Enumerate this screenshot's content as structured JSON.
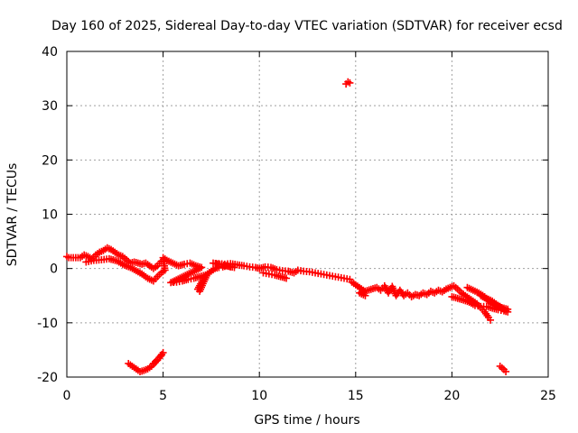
{
  "chart_data": {
    "type": "scatter",
    "title": "Day 160 of 2025, Sidereal Day-to-day VTEC variation (SDTVAR) for receiver ecsd",
    "xlabel": "GPS time / hours",
    "ylabel": "SDTVAR / TECUs",
    "xlim": [
      0,
      25
    ],
    "ylim": [
      -20,
      40
    ],
    "xticks": [
      "0",
      "5",
      "10",
      "15",
      "20",
      "25"
    ],
    "yticks": [
      "-20",
      "-10",
      "0",
      "10",
      "20",
      "30",
      "40"
    ],
    "grid": true,
    "marker": "+",
    "series": [
      {
        "name": "SDTVAR",
        "color": "#ff0000",
        "points": [
          [
            0.0,
            2.2
          ],
          [
            0.1,
            2.0
          ],
          [
            0.7,
            2.0
          ],
          [
            0.9,
            2.5
          ],
          [
            1.1,
            2.2
          ],
          [
            1.3,
            1.8
          ],
          [
            1.5,
            2.5
          ],
          [
            1.7,
            3.0
          ],
          [
            1.9,
            3.3
          ],
          [
            2.1,
            3.8
          ],
          [
            2.3,
            3.5
          ],
          [
            2.5,
            3.0
          ],
          [
            2.7,
            2.5
          ],
          [
            2.9,
            2.2
          ],
          [
            3.1,
            1.6
          ],
          [
            3.3,
            1.0
          ],
          [
            3.5,
            1.2
          ],
          [
            3.7,
            1.0
          ],
          [
            3.9,
            0.8
          ],
          [
            4.1,
            1.0
          ],
          [
            4.3,
            0.5
          ],
          [
            4.5,
            0.0
          ],
          [
            4.7,
            0.5
          ],
          [
            4.9,
            1.3
          ],
          [
            1.0,
            1.2
          ],
          [
            1.4,
            1.5
          ],
          [
            1.8,
            1.6
          ],
          [
            2.2,
            1.8
          ],
          [
            2.6,
            1.4
          ],
          [
            3.0,
            0.6
          ],
          [
            3.3,
            0.2
          ],
          [
            3.6,
            -0.4
          ],
          [
            3.9,
            -1.0
          ],
          [
            4.2,
            -1.8
          ],
          [
            4.5,
            -2.3
          ],
          [
            4.7,
            -1.5
          ],
          [
            4.9,
            -0.8
          ],
          [
            5.1,
            -0.3
          ],
          [
            5.0,
            2.0
          ],
          [
            5.2,
            1.5
          ],
          [
            5.5,
            1.0
          ],
          [
            5.8,
            0.5
          ],
          [
            6.1,
            0.8
          ],
          [
            6.4,
            1.0
          ],
          [
            6.7,
            0.5
          ],
          [
            7.0,
            0.2
          ],
          [
            5.4,
            -2.6
          ],
          [
            5.7,
            -2.5
          ],
          [
            6.0,
            -2.3
          ],
          [
            6.3,
            -2.0
          ],
          [
            6.6,
            -1.8
          ],
          [
            6.9,
            -1.5
          ],
          [
            7.2,
            -1.2
          ],
          [
            6.8,
            -3.8
          ],
          [
            6.9,
            -4.2
          ],
          [
            7.3,
            -1.0
          ],
          [
            7.5,
            -0.5
          ],
          [
            7.7,
            0.0
          ],
          [
            7.9,
            0.2
          ],
          [
            8.1,
            0.3
          ],
          [
            8.3,
            0.5
          ],
          [
            8.5,
            0.3
          ],
          [
            8.7,
            0.2
          ],
          [
            7.6,
            1.0
          ],
          [
            7.9,
            0.9
          ],
          [
            8.2,
            0.8
          ],
          [
            8.5,
            0.9
          ],
          [
            9.2,
            0.5
          ],
          [
            9.5,
            0.3
          ],
          [
            9.8,
            0.2
          ],
          [
            10.0,
            0.0
          ],
          [
            10.3,
            0.3
          ],
          [
            10.6,
            0.2
          ],
          [
            10.9,
            -0.2
          ],
          [
            11.2,
            -0.4
          ],
          [
            11.5,
            -0.5
          ],
          [
            11.8,
            -0.8
          ],
          [
            12.0,
            -0.3
          ],
          [
            12.3,
            -0.5
          ],
          [
            12.6,
            -0.6
          ],
          [
            12.9,
            -0.8
          ],
          [
            13.2,
            -1.0
          ],
          [
            13.5,
            -1.2
          ],
          [
            13.8,
            -1.4
          ],
          [
            14.1,
            -1.6
          ],
          [
            14.4,
            -1.8
          ],
          [
            14.7,
            -2.0
          ],
          [
            10.2,
            -0.8
          ],
          [
            10.5,
            -1.0
          ],
          [
            10.8,
            -1.2
          ],
          [
            11.1,
            -1.5
          ],
          [
            11.4,
            -1.8
          ],
          [
            14.5,
            34.0
          ],
          [
            14.6,
            34.4
          ],
          [
            14.7,
            34.2
          ],
          [
            14.8,
            -2.5
          ],
          [
            15.0,
            -3.0
          ],
          [
            15.2,
            -3.5
          ],
          [
            15.4,
            -4.0
          ],
          [
            15.5,
            -5.0
          ],
          [
            15.2,
            -4.5
          ],
          [
            16.1,
            -3.5
          ],
          [
            16.3,
            -4.0
          ],
          [
            16.5,
            -3.2
          ],
          [
            16.7,
            -4.5
          ],
          [
            16.9,
            -3.3
          ],
          [
            17.1,
            -5.0
          ],
          [
            17.3,
            -4.0
          ],
          [
            17.5,
            -5.0
          ],
          [
            17.7,
            -4.5
          ],
          [
            17.9,
            -5.2
          ],
          [
            18.1,
            -4.8
          ],
          [
            18.3,
            -5.0
          ],
          [
            18.5,
            -4.5
          ],
          [
            18.7,
            -4.8
          ],
          [
            18.9,
            -4.2
          ],
          [
            19.1,
            -4.5
          ],
          [
            19.3,
            -4.0
          ],
          [
            19.5,
            -4.3
          ],
          [
            19.7,
            -3.8
          ],
          [
            19.9,
            -3.5
          ],
          [
            20.1,
            -3.2
          ],
          [
            20.3,
            -3.8
          ],
          [
            20.5,
            -4.5
          ],
          [
            20.7,
            -5.0
          ],
          [
            20.9,
            -5.5
          ],
          [
            21.1,
            -6.0
          ],
          [
            21.3,
            -6.5
          ],
          [
            21.5,
            -7.2
          ],
          [
            21.7,
            -8.0
          ],
          [
            21.9,
            -9.0
          ],
          [
            22.0,
            -9.5
          ],
          [
            20.0,
            -5.2
          ],
          [
            20.3,
            -5.5
          ],
          [
            20.6,
            -5.8
          ],
          [
            20.9,
            -6.2
          ],
          [
            21.2,
            -6.8
          ],
          [
            21.5,
            -7.0
          ],
          [
            21.8,
            -7.0
          ],
          [
            22.1,
            -7.3
          ],
          [
            22.4,
            -7.6
          ],
          [
            22.7,
            -7.8
          ],
          [
            22.9,
            -8.0
          ],
          [
            21.5,
            -5.0
          ],
          [
            21.8,
            -5.5
          ],
          [
            22.1,
            -6.0
          ],
          [
            22.4,
            -6.8
          ],
          [
            22.6,
            -7.2
          ],
          [
            22.9,
            -7.5
          ],
          [
            20.8,
            -3.5
          ],
          [
            21.1,
            -4.0
          ],
          [
            21.4,
            -4.5
          ],
          [
            21.7,
            -5.2
          ],
          [
            22.0,
            -6.2
          ],
          [
            3.2,
            -17.5
          ],
          [
            3.4,
            -18.0
          ],
          [
            3.6,
            -18.5
          ],
          [
            3.8,
            -19.0
          ],
          [
            4.0,
            -18.8
          ],
          [
            4.2,
            -18.5
          ],
          [
            4.4,
            -18.0
          ],
          [
            4.6,
            -17.3
          ],
          [
            4.8,
            -16.5
          ],
          [
            5.0,
            -15.5
          ],
          [
            4.9,
            -16.0
          ],
          [
            4.7,
            -16.8
          ],
          [
            4.5,
            -17.5
          ],
          [
            22.5,
            -18.0
          ],
          [
            22.7,
            -18.6
          ],
          [
            22.8,
            -19.0
          ]
        ]
      }
    ]
  }
}
